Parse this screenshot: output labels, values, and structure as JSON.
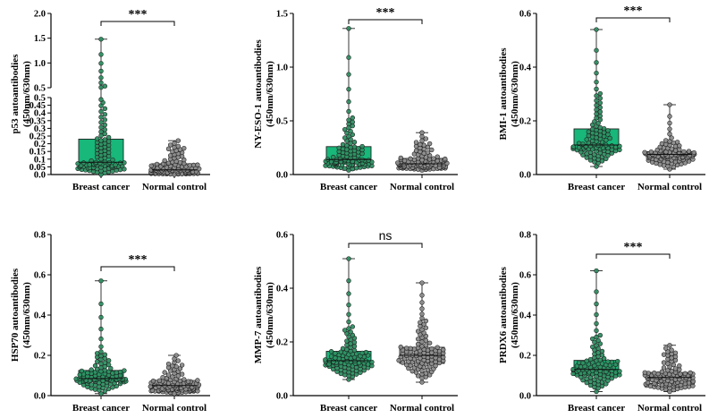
{
  "colors": {
    "breast_box": "#18b77a",
    "breast_point": "#2e8f62",
    "normal_box": "#cfcfcf",
    "normal_point": "#8a8a8a",
    "axis": "#000000"
  },
  "chart_data": [
    {
      "id": "p53",
      "type": "box-and-dot",
      "ylabel": [
        "p53 autoantibodies",
        "(450nm/630nm)"
      ],
      "categories": [
        "Breast cancer",
        "Normal control"
      ],
      "broken_axis": true,
      "ylim": [
        0,
        2.0
      ],
      "yticks_lower": [
        "0.0",
        "0.05",
        "0.1",
        "0.15",
        "0.2",
        "0.25",
        "0.3",
        "0.35",
        "0.4",
        "0.45",
        "0.5"
      ],
      "yticks_upper": [
        "0.5",
        "1.0",
        "1.5",
        "2.0"
      ],
      "significance": "***",
      "series": [
        {
          "name": "Breast cancer",
          "min": 0.0,
          "q1": 0.05,
          "median": 0.08,
          "q3": 0.23,
          "max": 1.48,
          "n": 100
        },
        {
          "name": "Normal control",
          "min": 0.0,
          "q1": 0.01,
          "median": 0.03,
          "q3": 0.07,
          "max": 0.22,
          "n": 100
        }
      ]
    },
    {
      "id": "ny-eso-1",
      "type": "box-and-dot",
      "ylabel": [
        "NY-ESO-1 autoantibodies",
        "(450nm/630nm)"
      ],
      "categories": [
        "Breast cancer",
        "Normal control"
      ],
      "ylim": [
        0,
        1.5
      ],
      "yticks": [
        "0.0",
        "0.5",
        "1.0",
        "1.5"
      ],
      "significance": "***",
      "series": [
        {
          "name": "Breast cancer",
          "min": 0.04,
          "q1": 0.1,
          "median": 0.14,
          "q3": 0.26,
          "max": 1.36,
          "n": 100
        },
        {
          "name": "Normal control",
          "min": 0.04,
          "q1": 0.07,
          "median": 0.1,
          "q3": 0.15,
          "max": 0.39,
          "n": 100
        }
      ]
    },
    {
      "id": "bmi-1",
      "type": "box-and-dot",
      "ylabel": [
        "BMI-1 autoantibodies",
        "(450nm/630nm)"
      ],
      "categories": [
        "Breast cancer",
        "Normal control"
      ],
      "ylim": [
        0,
        0.6
      ],
      "yticks": [
        "0.0",
        "0.2",
        "0.4",
        "0.6"
      ],
      "significance": "***",
      "series": [
        {
          "name": "Breast cancer",
          "min": 0.03,
          "q1": 0.09,
          "median": 0.11,
          "q3": 0.17,
          "max": 0.54,
          "n": 100
        },
        {
          "name": "Normal control",
          "min": 0.02,
          "q1": 0.06,
          "median": 0.075,
          "q3": 0.085,
          "max": 0.26,
          "n": 100
        }
      ]
    },
    {
      "id": "hsp70",
      "type": "box-and-dot",
      "ylabel": [
        "HSP70 autoantibodies",
        "(450nm/630nm)"
      ],
      "categories": [
        "Breast cancer",
        "Normal control"
      ],
      "ylim": [
        0,
        0.8
      ],
      "yticks": [
        "0.0",
        "0.2",
        "0.4",
        "0.6",
        "0.8"
      ],
      "significance": "***",
      "series": [
        {
          "name": "Breast cancer",
          "min": 0.01,
          "q1": 0.07,
          "median": 0.085,
          "q3": 0.125,
          "max": 0.57,
          "n": 100
        },
        {
          "name": "Normal control",
          "min": 0.01,
          "q1": 0.03,
          "median": 0.05,
          "q3": 0.075,
          "max": 0.2,
          "n": 100
        }
      ]
    },
    {
      "id": "mmp-7",
      "type": "box-and-dot",
      "ylabel": [
        "MMP-7 autoantibodies",
        "(450nm/630nm)"
      ],
      "categories": [
        "Breast cancer",
        "Normal control"
      ],
      "ylim": [
        0,
        0.6
      ],
      "yticks": [
        "0.0",
        "0.2",
        "0.4",
        "0.6"
      ],
      "significance": "ns",
      "series": [
        {
          "name": "Breast cancer",
          "min": 0.06,
          "q1": 0.11,
          "median": 0.13,
          "q3": 0.165,
          "max": 0.51,
          "n": 100
        },
        {
          "name": "Normal control",
          "min": 0.05,
          "q1": 0.12,
          "median": 0.15,
          "q3": 0.18,
          "max": 0.42,
          "n": 100
        }
      ]
    },
    {
      "id": "prdx6",
      "type": "box-and-dot",
      "ylabel": [
        "PRDX6 autoantibodies",
        "(450nm/630nm)"
      ],
      "categories": [
        "Breast cancer",
        "Normal control"
      ],
      "ylim": [
        0,
        0.8
      ],
      "yticks": [
        "0.0",
        "0.2",
        "0.4",
        "0.6",
        "0.8"
      ],
      "significance": "***",
      "series": [
        {
          "name": "Breast cancer",
          "min": 0.02,
          "q1": 0.1,
          "median": 0.13,
          "q3": 0.175,
          "max": 0.62,
          "n": 100
        },
        {
          "name": "Normal control",
          "min": 0.02,
          "q1": 0.06,
          "median": 0.09,
          "q3": 0.115,
          "max": 0.25,
          "n": 100
        }
      ]
    }
  ]
}
